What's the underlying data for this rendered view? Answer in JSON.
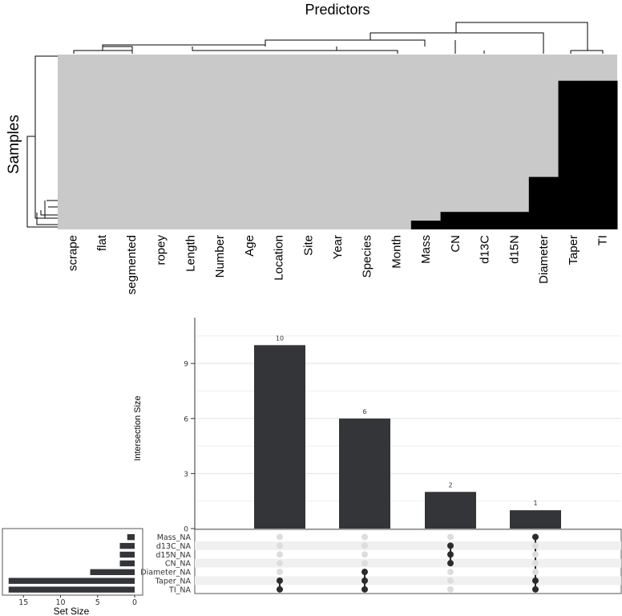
{
  "chart_data": [
    {
      "type": "heatmap",
      "title": "Predictors",
      "ylabel": "Samples",
      "columns": [
        "scrape",
        "flat",
        "segmented",
        "ropey",
        "Length",
        "Number",
        "Age",
        "Location",
        "Site",
        "Year",
        "Species",
        "Month",
        "Mass",
        "CN",
        "d13C",
        "d15N",
        "Diameter",
        "Taper",
        "TI"
      ],
      "present_color": "#c8c9c8",
      "missing_color": "#000000",
      "n_rows": 20,
      "missing_rows_from_bottom": {
        "Mass": 1,
        "CN": 2,
        "d13C": 2,
        "d15N": 2,
        "Diameter": 6,
        "Taper": 17,
        "TI": 17
      }
    },
    {
      "type": "bar",
      "ylabel": "Intersection Size",
      "categories": [
        "Taper_NA & TI_NA",
        "Diameter_NA & Taper_NA & TI_NA",
        "d13C_NA & d15N_NA & CN_NA",
        "Mass_NA & Taper_NA & TI_NA"
      ],
      "values": [
        10,
        6,
        2,
        1
      ],
      "labels": [
        "10",
        "6",
        "2",
        "1"
      ],
      "yticks": [
        "0",
        "3",
        "6",
        "9"
      ],
      "ylim": [
        0,
        11.5
      ],
      "grid": true,
      "bar_color": "#333538"
    },
    {
      "type": "bar",
      "orientation": "horizontal",
      "xlabel": "Set Size",
      "sets": [
        "Mass_NA",
        "d13C_NA",
        "d15N_NA",
        "CN_NA",
        "Diameter_NA",
        "Taper_NA",
        "TI_NA"
      ],
      "values": [
        1,
        2,
        2,
        2,
        6,
        17,
        17
      ],
      "xticks": [
        "15",
        "10",
        "5",
        "0"
      ],
      "bar_color": "#333538"
    }
  ],
  "matrix": {
    "sets": [
      "Mass_NA",
      "d13C_NA",
      "d15N_NA",
      "CN_NA",
      "Diameter_NA",
      "Taper_NA",
      "TI_NA"
    ],
    "memberships": [
      [
        "Taper_NA",
        "TI_NA"
      ],
      [
        "Diameter_NA",
        "Taper_NA",
        "TI_NA"
      ],
      [
        "d13C_NA",
        "d15N_NA",
        "CN_NA"
      ],
      [
        "Mass_NA",
        "Taper_NA",
        "TI_NA"
      ]
    ],
    "active_color": "#2b2b2b",
    "inactive_color": "#dddddd"
  }
}
